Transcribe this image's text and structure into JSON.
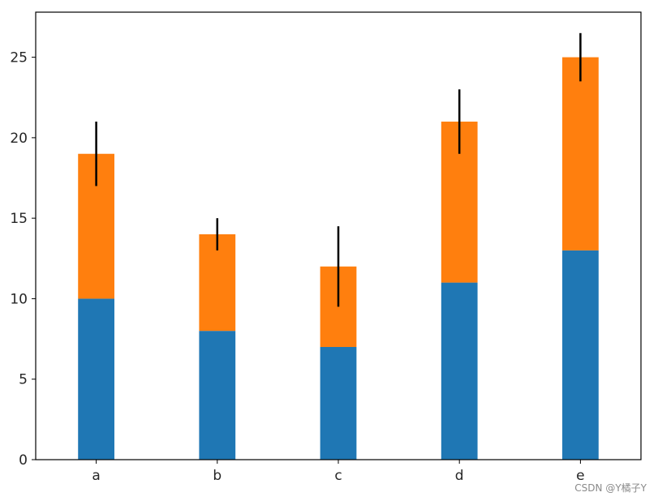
{
  "chart_data": {
    "type": "bar",
    "stacked": true,
    "categories": [
      "a",
      "b",
      "c",
      "d",
      "e"
    ],
    "series": [
      {
        "values": [
          10,
          8,
          7,
          11,
          13
        ],
        "color": "#1f77b4"
      },
      {
        "values": [
          9,
          6,
          5,
          10,
          12
        ],
        "color": "#ff7f0e"
      }
    ],
    "error_bars": [
      2,
      1,
      2.5,
      2,
      1.5
    ],
    "error_bar_color": "#000000",
    "ylim": [
      0,
      27.8
    ],
    "yticks": [
      0,
      5,
      10,
      15,
      20,
      25
    ],
    "grid": false,
    "legend": "none"
  },
  "watermark": "CSDN @Y橘子Y"
}
